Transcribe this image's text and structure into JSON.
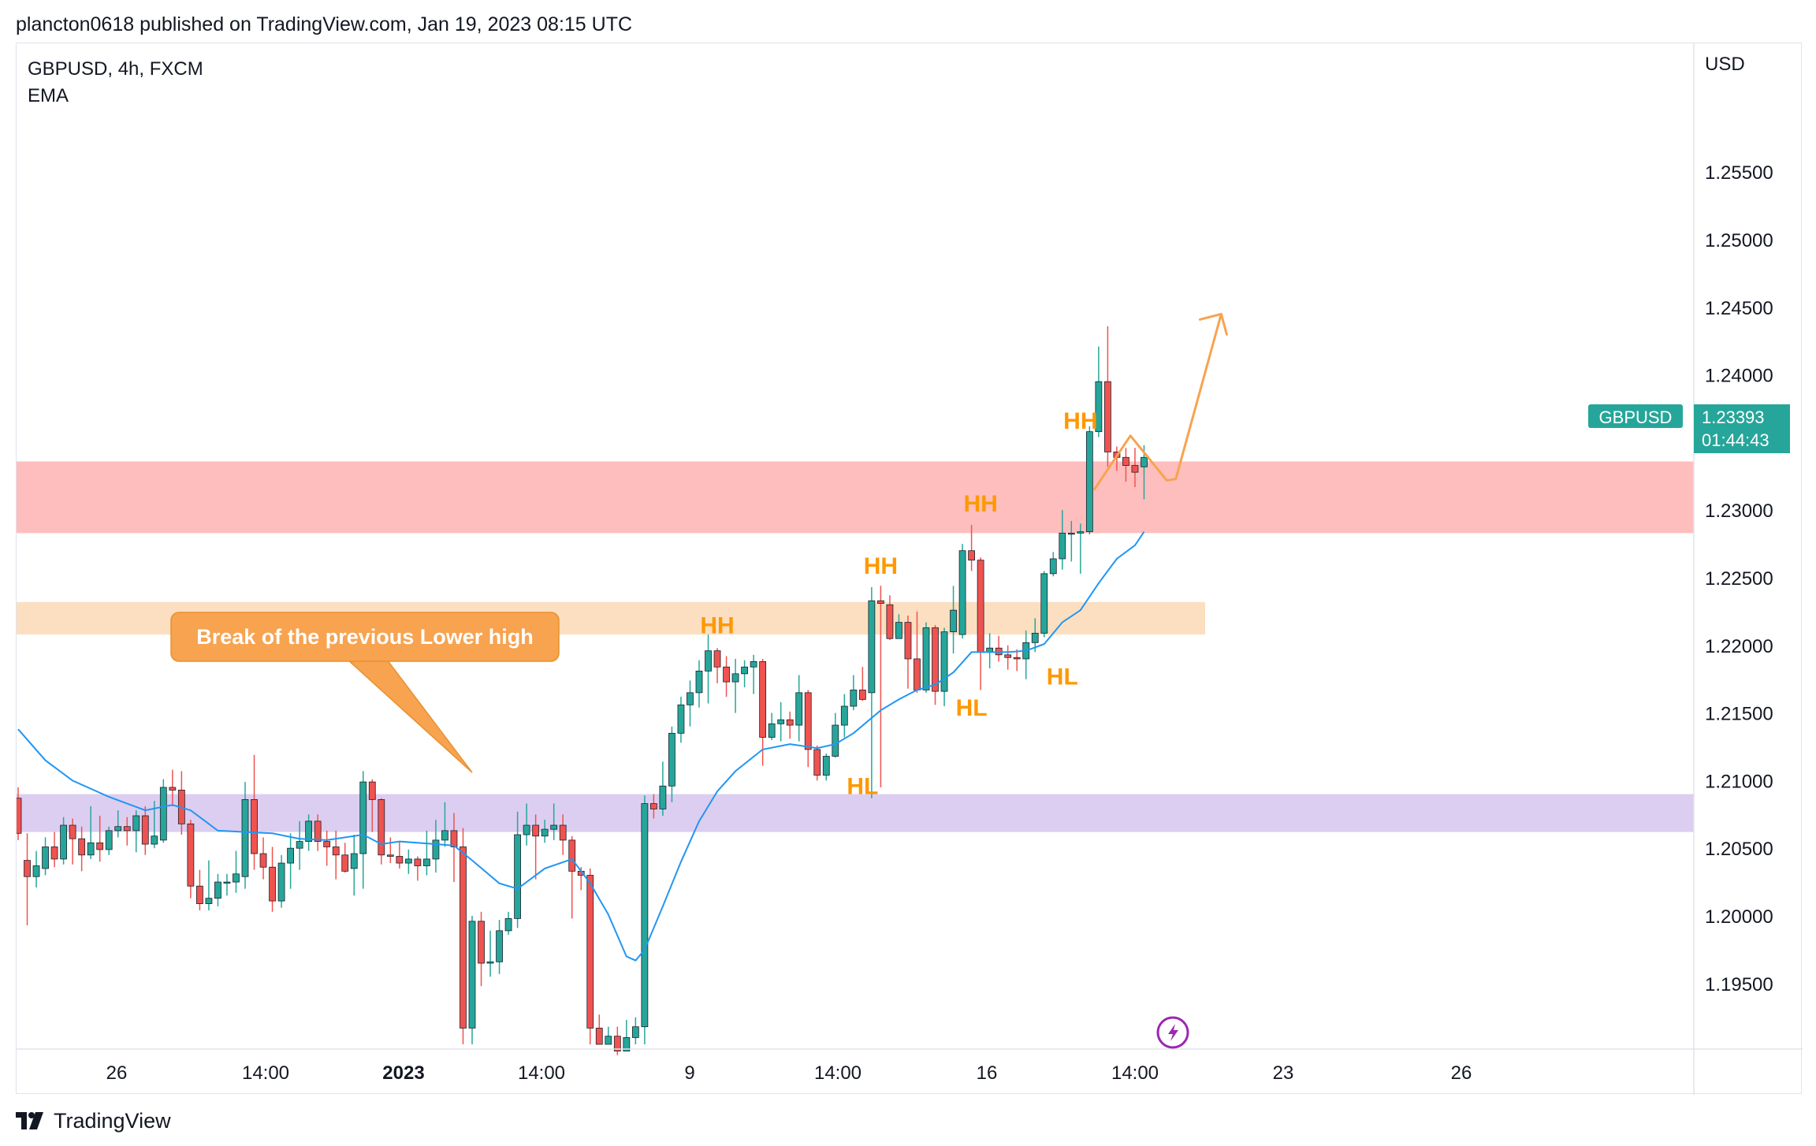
{
  "header": {
    "text": "plancton0618 published on TradingView.com, Jan 19, 2023 08:15 UTC"
  },
  "footer": {
    "brand": "TradingView"
  },
  "icons": {
    "logo": "tradingview-logo-icon",
    "alert": "lightning-bolt-icon"
  },
  "colors": {
    "up": "#26a69a",
    "down": "#ef5350",
    "ema": "#2196f3",
    "annotation": "#f7a350",
    "label_text": "#ff9800",
    "resistance_zone": "#ffb3b3",
    "support_zone_orange": "#fbd9b5",
    "support_zone_purple": "#d6c6ee",
    "price_badge": "#26a69a",
    "alert_icon": "#9c27b0"
  },
  "chart_data": {
    "type": "candlestick",
    "symbol_line": "GBPUSD, 4h, FXCM",
    "indicator": "EMA",
    "currency_label": "USD",
    "ylim": [
      1.1905,
      1.2595
    ],
    "y_ticks": [
      "1.25500",
      "1.25000",
      "1.24500",
      "1.24000",
      "1.23500",
      "1.23000",
      "1.22500",
      "1.22000",
      "1.21500",
      "1.21000",
      "1.20500",
      "1.20000",
      "1.19500"
    ],
    "x_ticks": [
      "26",
      "14:00",
      "2023",
      "14:00",
      "9",
      "14:00",
      "16",
      "14:00",
      "23",
      "26"
    ],
    "last_price": {
      "symbol": "GBPUSD",
      "price": "1.23393",
      "countdown": "01:44:43"
    },
    "zones": [
      {
        "name": "resistance",
        "from": 1.2283,
        "to": 1.2336,
        "color": "#ffb3b3"
      },
      {
        "name": "orange-support",
        "from": 1.2208,
        "to": 1.2232,
        "color": "#fbd9b5"
      },
      {
        "name": "purple-support",
        "from": 1.2062,
        "to": 1.209,
        "color": "#d6c6ee"
      }
    ],
    "candles": [
      [
        1.2087,
        1.2061,
        1.2095,
        1.2056
      ],
      [
        1.2041,
        1.2029,
        1.2061,
        1.1993
      ],
      [
        1.2029,
        1.2037,
        1.2048,
        1.2021
      ],
      [
        1.2035,
        1.2051,
        1.2058,
        1.203
      ],
      [
        1.2051,
        1.2042,
        1.2062,
        1.2036
      ],
      [
        1.2042,
        1.2067,
        1.2073,
        1.2038
      ],
      [
        1.2067,
        1.2057,
        1.2072,
        1.2038
      ],
      [
        1.2057,
        1.2045,
        1.2066,
        1.2033
      ],
      [
        1.2045,
        1.2054,
        1.2081,
        1.2042
      ],
      [
        1.2054,
        1.2049,
        1.2074,
        1.204
      ],
      [
        1.2049,
        1.2063,
        1.2066,
        1.2045
      ],
      [
        1.2063,
        1.2066,
        1.2078,
        1.2058
      ],
      [
        1.2066,
        1.2063,
        1.2073,
        1.2052
      ],
      [
        1.2063,
        1.2074,
        1.2078,
        1.2047
      ],
      [
        1.2074,
        1.2053,
        1.2081,
        1.2045
      ],
      [
        1.2053,
        1.2059,
        1.2085,
        1.205
      ],
      [
        1.2056,
        1.2095,
        1.2101,
        1.2054
      ],
      [
        1.2095,
        1.2093,
        1.2108,
        1.2081
      ],
      [
        1.2093,
        1.2068,
        1.2107,
        1.206
      ],
      [
        1.2068,
        1.2022,
        1.2071,
        1.2013
      ],
      [
        1.2022,
        1.2009,
        1.2034,
        1.2004
      ],
      [
        1.2009,
        1.2013,
        1.2041,
        1.2004
      ],
      [
        1.2013,
        1.2025,
        1.2031,
        1.2007
      ],
      [
        1.2025,
        1.2025,
        1.2031,
        1.2015
      ],
      [
        1.2025,
        1.2031,
        1.2048,
        1.2017
      ],
      [
        1.2029,
        1.2086,
        1.2099,
        1.202
      ],
      [
        1.2086,
        1.2046,
        1.2119,
        1.2034
      ],
      [
        1.2046,
        1.2036,
        1.2058,
        1.2027
      ],
      [
        1.2036,
        1.2011,
        1.2051,
        1.2003
      ],
      [
        1.2011,
        1.2039,
        1.2045,
        1.2006
      ],
      [
        1.2039,
        1.205,
        1.2061,
        1.202
      ],
      [
        1.205,
        1.2055,
        1.207,
        1.2034
      ],
      [
        1.2055,
        1.207,
        1.2075,
        1.2048
      ],
      [
        1.207,
        1.2055,
        1.2075,
        1.2048
      ],
      [
        1.2055,
        1.2051,
        1.2063,
        1.2037
      ],
      [
        1.2051,
        1.2045,
        1.2063,
        1.2027
      ],
      [
        1.2045,
        1.2033,
        1.2054,
        1.2032
      ],
      [
        1.2035,
        1.2046,
        1.206,
        1.2015
      ],
      [
        1.2046,
        1.2099,
        1.2107,
        1.202
      ],
      [
        1.2099,
        1.2086,
        1.2101,
        1.2062
      ],
      [
        1.2086,
        1.2045,
        1.2087,
        1.2038
      ],
      [
        1.2045,
        1.2044,
        1.2058,
        1.2039
      ],
      [
        1.2044,
        1.2039,
        1.2055,
        1.2035
      ],
      [
        1.2039,
        1.2042,
        1.2049,
        1.2031
      ],
      [
        1.2042,
        1.2037,
        1.2044,
        1.2026
      ],
      [
        1.2037,
        1.2042,
        1.2063,
        1.203
      ],
      [
        1.2042,
        1.2056,
        1.2071,
        1.2032
      ],
      [
        1.2056,
        1.2063,
        1.2084,
        1.2051
      ],
      [
        1.2063,
        1.2051,
        1.2076,
        1.2025
      ],
      [
        1.2051,
        1.1917,
        1.2065,
        1.1905
      ],
      [
        1.1917,
        1.1996,
        1.2,
        1.1905
      ],
      [
        1.1996,
        1.1965,
        1.2003,
        1.1948
      ],
      [
        1.1965,
        1.1966,
        1.1989,
        1.1955
      ],
      [
        1.1966,
        1.1989,
        1.1997,
        1.1957
      ],
      [
        1.1989,
        1.1998,
        1.2003,
        1.1986
      ],
      [
        1.1998,
        1.206,
        1.2077,
        1.1991
      ],
      [
        1.206,
        1.2067,
        1.2083,
        1.2052
      ],
      [
        1.2067,
        1.2059,
        1.2075,
        1.2027
      ],
      [
        1.2059,
        1.2064,
        1.2071,
        1.2054
      ],
      [
        1.2064,
        1.2067,
        1.2083,
        1.2056
      ],
      [
        1.2067,
        1.2056,
        1.2075,
        1.2045
      ],
      [
        1.2056,
        1.2033,
        1.2059,
        1.1998
      ],
      [
        1.2033,
        1.203,
        1.2036,
        1.2019
      ],
      [
        1.203,
        1.1917,
        1.2035,
        1.1905
      ],
      [
        1.1917,
        1.1905,
        1.1927,
        1.1905
      ],
      [
        1.1905,
        1.1911,
        1.1918,
        1.1905
      ],
      [
        1.1911,
        1.19,
        1.1918,
        1.1897
      ],
      [
        1.19,
        1.191,
        1.1923,
        1.19
      ],
      [
        1.191,
        1.1918,
        1.1925,
        1.1905
      ],
      [
        1.1918,
        1.2083,
        1.2089,
        1.1905
      ],
      [
        1.2083,
        1.2079,
        1.209,
        1.2072
      ],
      [
        1.2079,
        1.2096,
        1.2114,
        1.2074
      ],
      [
        1.2096,
        1.2135,
        1.214,
        1.2084
      ],
      [
        1.2135,
        1.2156,
        1.2162,
        1.2128
      ],
      [
        1.2156,
        1.2165,
        1.2174,
        1.214
      ],
      [
        1.2165,
        1.2181,
        1.2189,
        1.2154
      ],
      [
        1.2181,
        1.2196,
        1.2208,
        1.2157
      ],
      [
        1.2196,
        1.2184,
        1.2198,
        1.2172
      ],
      [
        1.2184,
        1.2173,
        1.2192,
        1.2162
      ],
      [
        1.2173,
        1.2179,
        1.219,
        1.215
      ],
      [
        1.2179,
        1.2184,
        1.2189,
        1.2169
      ],
      [
        1.2184,
        1.2188,
        1.2193,
        1.2164
      ],
      [
        1.2188,
        1.2132,
        1.219,
        1.2111
      ],
      [
        1.2132,
        1.2142,
        1.215,
        1.213
      ],
      [
        1.2142,
        1.2145,
        1.2158,
        1.2129
      ],
      [
        1.2145,
        1.2141,
        1.2151,
        1.2131
      ],
      [
        1.2141,
        1.2165,
        1.2178,
        1.2129
      ],
      [
        1.2165,
        1.2123,
        1.2167,
        1.211
      ],
      [
        1.2123,
        1.2104,
        1.2126,
        1.21
      ],
      [
        1.2104,
        1.2118,
        1.212,
        1.21
      ],
      [
        1.2118,
        1.2141,
        1.215,
        1.2117
      ],
      [
        1.2141,
        1.2155,
        1.2164,
        1.2132
      ],
      [
        1.2155,
        1.2167,
        1.2178,
        1.2152
      ],
      [
        1.2167,
        1.216,
        1.2184,
        1.2159
      ],
      [
        1.2165,
        1.2233,
        1.2243,
        1.2087
      ],
      [
        1.2233,
        1.2231,
        1.2244,
        1.2095
      ],
      [
        1.223,
        1.2205,
        1.2237,
        1.2204
      ],
      [
        1.2205,
        1.2217,
        1.2223,
        1.2207
      ],
      [
        1.2217,
        1.219,
        1.2222,
        1.2168
      ],
      [
        1.219,
        1.2167,
        1.2225,
        1.2165
      ],
      [
        1.2167,
        1.2213,
        1.2217,
        1.2165
      ],
      [
        1.2213,
        1.2166,
        1.2215,
        1.2156
      ],
      [
        1.2166,
        1.221,
        1.2213,
        1.2155
      ],
      [
        1.221,
        1.2226,
        1.2244,
        1.2194
      ],
      [
        1.2208,
        1.227,
        1.2275,
        1.2205
      ],
      [
        1.227,
        1.2263,
        1.2289,
        1.2255
      ],
      [
        1.2263,
        1.2195,
        1.2265,
        1.2167
      ],
      [
        1.2195,
        1.2198,
        1.2209,
        1.2183
      ],
      [
        1.2198,
        1.2193,
        1.2207,
        1.2188
      ],
      [
        1.2193,
        1.2191,
        1.22,
        1.2182
      ],
      [
        1.2191,
        1.219,
        1.2197,
        1.2181
      ],
      [
        1.219,
        1.2202,
        1.2211,
        1.2175
      ],
      [
        1.2202,
        1.2209,
        1.222,
        1.2195
      ],
      [
        1.2209,
        1.2253,
        1.2255,
        1.2206
      ],
      [
        1.2253,
        1.2264,
        1.2269,
        1.2251
      ],
      [
        1.2264,
        1.2283,
        1.23,
        1.2256
      ],
      [
        1.2283,
        1.2283,
        1.2292,
        1.2262
      ],
      [
        1.2283,
        1.2284,
        1.229,
        1.2253
      ],
      [
        1.2284,
        1.2358,
        1.2362,
        1.2282
      ],
      [
        1.2358,
        1.2395,
        1.2421,
        1.2354
      ],
      [
        1.2395,
        1.2343,
        1.2436,
        1.2332
      ],
      [
        1.2343,
        1.2339,
        1.2347,
        1.2329
      ],
      [
        1.2339,
        1.2333,
        1.2346,
        1.2321
      ],
      [
        1.2333,
        1.2328,
        1.2346,
        1.2317
      ],
      [
        1.2332,
        1.2339,
        1.2348,
        1.2308
      ]
    ],
    "ema": [
      [
        0,
        1.2138
      ],
      [
        3,
        1.2115
      ],
      [
        6,
        1.21
      ],
      [
        10,
        1.2088
      ],
      [
        14,
        1.2078
      ],
      [
        17,
        1.2082
      ],
      [
        19,
        1.2078
      ],
      [
        22,
        1.2063
      ],
      [
        25,
        1.2062
      ],
      [
        28,
        1.2061
      ],
      [
        31,
        1.2057
      ],
      [
        34,
        1.2056
      ],
      [
        38,
        1.206
      ],
      [
        40,
        1.2053
      ],
      [
        42,
        1.2055
      ],
      [
        46,
        1.2053
      ],
      [
        48,
        1.2052
      ],
      [
        50,
        1.2041
      ],
      [
        53,
        1.2024
      ],
      [
        55,
        1.202
      ],
      [
        58,
        1.2035
      ],
      [
        61,
        1.2042
      ],
      [
        63,
        1.2024
      ],
      [
        65,
        1.2001
      ],
      [
        67,
        1.197
      ],
      [
        68,
        1.1967
      ],
      [
        69,
        1.1975
      ],
      [
        71,
        1.2007
      ],
      [
        73,
        1.204
      ],
      [
        75,
        1.207
      ],
      [
        77,
        1.2092
      ],
      [
        79,
        1.2107
      ],
      [
        82,
        1.2123
      ],
      [
        85,
        1.2127
      ],
      [
        88,
        1.2124
      ],
      [
        90,
        1.2127
      ],
      [
        92,
        1.2135
      ],
      [
        95,
        1.2152
      ],
      [
        97,
        1.216
      ],
      [
        99,
        1.2167
      ],
      [
        101,
        1.2171
      ],
      [
        103,
        1.218
      ],
      [
        105,
        1.2195
      ],
      [
        107,
        1.2195
      ],
      [
        109,
        1.2195
      ],
      [
        111,
        1.2196
      ],
      [
        113,
        1.2201
      ],
      [
        115,
        1.2217
      ],
      [
        117,
        1.2226
      ],
      [
        119,
        1.2246
      ],
      [
        121,
        1.2264
      ],
      [
        123,
        1.2274
      ],
      [
        124,
        1.2284
      ]
    ],
    "projection": [
      [
        118.5,
        1.2315
      ],
      [
        122.5,
        1.2355
      ],
      [
        126.5,
        1.2322
      ],
      [
        127.5,
        1.2323
      ],
      [
        132.5,
        1.2445
      ]
    ],
    "labels": [
      {
        "text": "HH",
        "index": 77,
        "price": 1.2209
      },
      {
        "text": "HH",
        "index": 95,
        "price": 1.2253
      },
      {
        "text": "HH",
        "index": 106,
        "price": 1.2299
      },
      {
        "text": "HH",
        "index": 117,
        "price": 1.236
      },
      {
        "text": "HL",
        "index": 93,
        "price": 1.209
      },
      {
        "text": "HL",
        "index": 105,
        "price": 1.2148
      },
      {
        "text": "HL",
        "index": 115,
        "price": 1.2171
      }
    ],
    "callout": {
      "text": "Break of the previous Lower high",
      "pointer": {
        "index": 50,
        "price": 1.2106
      }
    }
  }
}
